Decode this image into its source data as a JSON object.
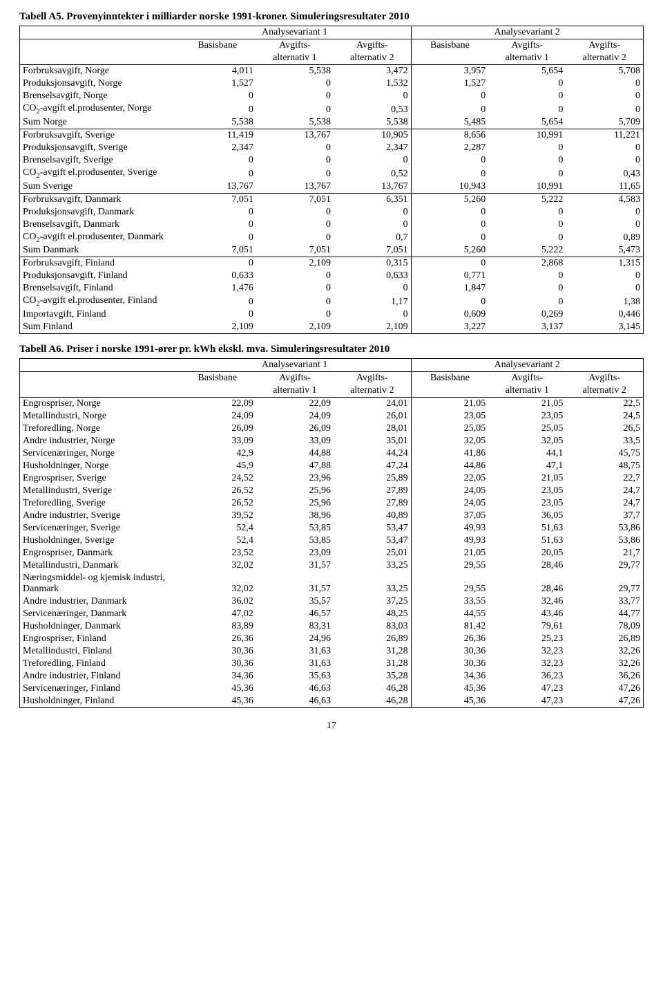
{
  "pageNumber": "17",
  "tableA5": {
    "title": "Tabell A5. Provenyinntekter i milliarder norske 1991-kroner. Simuleringsresultater 2010",
    "variantHeaders": {
      "v1": "Analysevariant 1",
      "v2": "Analysevariant 2"
    },
    "subHeaders": {
      "basisbane": "Basisbane",
      "avgiftsTop": "Avgifts-",
      "alt1": "alternativ 1",
      "alt2": "alternativ 2"
    },
    "groups": [
      {
        "rows": [
          {
            "label": "Forbruksavgift, Norge",
            "v1": [
              "4,011",
              "5,538",
              "3,472"
            ],
            "v2": [
              "3,957",
              "5,654",
              "5,708"
            ]
          },
          {
            "label": "Produksjonsavgift, Norge",
            "v1": [
              "1,527",
              "0",
              "1,532"
            ],
            "v2": [
              "1,527",
              "0",
              "0"
            ]
          },
          {
            "label": "Brenselsavgift, Norge",
            "v1": [
              "0",
              "0",
              "0"
            ],
            "v2": [
              "0",
              "0",
              "0"
            ]
          },
          {
            "label_html": "CO<sub>2</sub>-avgift el.produsenter, Norge",
            "v1": [
              "0",
              "0",
              "0,53"
            ],
            "v2": [
              "0",
              "0",
              "0"
            ]
          },
          {
            "label": "Sum Norge",
            "v1": [
              "5,538",
              "5,538",
              "5,538"
            ],
            "v2": [
              "5,485",
              "5,654",
              "5,709"
            ]
          }
        ]
      },
      {
        "rows": [
          {
            "label": "Forbruksavgift, Sverige",
            "v1": [
              "11,419",
              "13,767",
              "10,905"
            ],
            "v2": [
              "8,656",
              "10,991",
              "11,221"
            ]
          },
          {
            "label": "Produksjonsavgift, Sverige",
            "v1": [
              "2,347",
              "0",
              "2,347"
            ],
            "v2": [
              "2,287",
              "0",
              "0"
            ]
          },
          {
            "label": "Brenselsavgift, Sverige",
            "v1": [
              "0",
              "0",
              "0"
            ],
            "v2": [
              "0",
              "0",
              "0"
            ]
          },
          {
            "label_html": "CO<sub>2</sub>-avgift el.produsenter, Sverige",
            "v1": [
              "0",
              "0",
              "0,52"
            ],
            "v2": [
              "0",
              "0",
              "0,43"
            ]
          },
          {
            "label": "Sum Sverige",
            "v1": [
              "13,767",
              "13,767",
              "13,767"
            ],
            "v2": [
              "10,943",
              "10,991",
              "11,65"
            ]
          }
        ]
      },
      {
        "rows": [
          {
            "label": "Forbruksavgift, Danmark",
            "v1": [
              "7,051",
              "7,051",
              "6,351"
            ],
            "v2": [
              "5,260",
              "5,222",
              "4,583"
            ]
          },
          {
            "label": "Produksjonsavgift, Danmark",
            "v1": [
              "0",
              "0",
              "0"
            ],
            "v2": [
              "0",
              "0",
              "0"
            ]
          },
          {
            "label": "Brenselsavgift, Danmark",
            "v1": [
              "0",
              "0",
              "0"
            ],
            "v2": [
              "0",
              "0",
              "0"
            ]
          },
          {
            "label_html": "CO<sub>2</sub>-avgift el.produsenter, Danmark",
            "v1": [
              "0",
              "0",
              "0,7"
            ],
            "v2": [
              "0",
              "0",
              "0,89"
            ]
          },
          {
            "label": "Sum Danmark",
            "v1": [
              "7,051",
              "7,051",
              "7,051"
            ],
            "v2": [
              "5,260",
              "5,222",
              "5,473"
            ]
          }
        ]
      },
      {
        "rows": [
          {
            "label": "Forbruksavgift, Finland",
            "v1": [
              "0",
              "2,109",
              "0,315"
            ],
            "v2": [
              "0",
              "2,868",
              "1,315"
            ]
          },
          {
            "label": "Produksjonsavgift, Finland",
            "v1": [
              "0,633",
              "0",
              "0,633"
            ],
            "v2": [
              "0,771",
              "0",
              "0"
            ]
          },
          {
            "label": "Brenselsavgift, Finland",
            "v1": [
              "1,476",
              "0",
              "0"
            ],
            "v2": [
              "1,847",
              "0",
              "0"
            ]
          },
          {
            "label_html": "CO<sub>2</sub>-avgift el.produsenter, Finland",
            "v1": [
              "0",
              "0",
              "1,17"
            ],
            "v2": [
              "0",
              "0",
              "1,38"
            ]
          },
          {
            "label": "Importavgift, Finland",
            "v1": [
              "0",
              "0",
              "0"
            ],
            "v2": [
              "0,609",
              "0,269",
              "0,446"
            ]
          },
          {
            "label": "Sum Finland",
            "v1": [
              "2,109",
              "2,109",
              "2,109"
            ],
            "v2": [
              "3,227",
              "3,137",
              "3,145"
            ]
          }
        ]
      }
    ]
  },
  "tableA6": {
    "title": "Tabell A6. Priser i norske 1991-ører pr. kWh ekskl. mva. Simuleringsresultater 2010",
    "variantHeaders": {
      "v1": "Analysevariant 1",
      "v2": "Analysevariant 2"
    },
    "subHeaders": {
      "basisbane": "Basisbane",
      "avgiftsTop": "Avgifts-",
      "alt1": "alternativ 1",
      "alt2": "alternativ 2"
    },
    "rows": [
      {
        "label": "Engrospriser, Norge",
        "v1": [
          "22,09",
          "22,09",
          "24,01"
        ],
        "v2": [
          "21,05",
          "21,05",
          "22,5"
        ]
      },
      {
        "label": "Metallindustri, Norge",
        "v1": [
          "24,09",
          "24,09",
          "26,01"
        ],
        "v2": [
          "23,05",
          "23,05",
          "24,5"
        ]
      },
      {
        "label": "Treforedling, Norge",
        "v1": [
          "26,09",
          "26,09",
          "28,01"
        ],
        "v2": [
          "25,05",
          "25,05",
          "26,5"
        ]
      },
      {
        "label": "Andre industrier, Norge",
        "v1": [
          "33,09",
          "33,09",
          "35,01"
        ],
        "v2": [
          "32,05",
          "32,05",
          "33,5"
        ]
      },
      {
        "label": "Servicenæringer, Norge",
        "v1": [
          "42,9",
          "44,88",
          "44,24"
        ],
        "v2": [
          "41,86",
          "44,1",
          "45,75"
        ]
      },
      {
        "label": "Husholdninger, Norge",
        "v1": [
          "45,9",
          "47,88",
          "47,24"
        ],
        "v2": [
          "44,86",
          "47,1",
          "48,75"
        ]
      },
      {
        "label": "Engrospriser, Sverige",
        "v1": [
          "24,52",
          "23,96",
          "25,89"
        ],
        "v2": [
          "22,05",
          "21,05",
          "22,7"
        ]
      },
      {
        "label": "Metallindustri, Sverige",
        "v1": [
          "26,52",
          "25,96",
          "27,89"
        ],
        "v2": [
          "24,05",
          "23,05",
          "24,7"
        ]
      },
      {
        "label": "Treforedling, Sverige",
        "v1": [
          "26,52",
          "25,96",
          "27,89"
        ],
        "v2": [
          "24,05",
          "23,05",
          "24,7"
        ]
      },
      {
        "label": "Andre industrier, Sverige",
        "v1": [
          "39,52",
          "38,96",
          "40,89"
        ],
        "v2": [
          "37,05",
          "36,05",
          "37,7"
        ]
      },
      {
        "label": "Servicenæringer, Sverige",
        "v1": [
          "52,4",
          "53,85",
          "53,47"
        ],
        "v2": [
          "49,93",
          "51,63",
          "53,86"
        ]
      },
      {
        "label": "Husholdninger, Sverige",
        "v1": [
          "52,4",
          "53,85",
          "53,47"
        ],
        "v2": [
          "49,93",
          "51,63",
          "53,86"
        ]
      },
      {
        "label": "Engrospriser, Danmark",
        "v1": [
          "23,52",
          "23,09",
          "25,01"
        ],
        "v2": [
          "21,05",
          "20,05",
          "21,7"
        ]
      },
      {
        "label": "Metallindustri, Danmark",
        "v1": [
          "32,02",
          "31,57",
          "33,25"
        ],
        "v2": [
          "29,55",
          "28,46",
          "29,77"
        ]
      },
      {
        "label": "Næringsmiddel- og kjemisk industri, Danmark",
        "v1": [
          "32,02",
          "31,57",
          "33,25"
        ],
        "v2": [
          "29,55",
          "28,46",
          "29,77"
        ],
        "wrap": true
      },
      {
        "label": "Andre industrier, Danmark",
        "v1": [
          "36,02",
          "35,57",
          "37,25"
        ],
        "v2": [
          "33,55",
          "32,46",
          "33,77"
        ]
      },
      {
        "label": "Servicenæringer, Danmark",
        "v1": [
          "47,02",
          "46,57",
          "48,25"
        ],
        "v2": [
          "44,55",
          "43,46",
          "44,77"
        ]
      },
      {
        "label": "Husholdninger, Danmark",
        "v1": [
          "83,89",
          "83,31",
          "83,03"
        ],
        "v2": [
          "81,42",
          "79,61",
          "78,09"
        ]
      },
      {
        "label": "Engrospriser, Finland",
        "v1": [
          "26,36",
          "24,96",
          "26,89"
        ],
        "v2": [
          "26,36",
          "25,23",
          "26,89"
        ]
      },
      {
        "label": "Metallindustri, Finland",
        "v1": [
          "30,36",
          "31,63",
          "31,28"
        ],
        "v2": [
          "30,36",
          "32,23",
          "32,26"
        ]
      },
      {
        "label": "Treforedling, Finland",
        "v1": [
          "30,36",
          "31,63",
          "31,28"
        ],
        "v2": [
          "30,36",
          "32,23",
          "32,26"
        ]
      },
      {
        "label": "Andre industrier, Finland",
        "v1": [
          "34,36",
          "35,63",
          "35,28"
        ],
        "v2": [
          "34,36",
          "36,23",
          "36,26"
        ]
      },
      {
        "label": "Servicenæringer, Finland",
        "v1": [
          "45,36",
          "46,63",
          "46,28"
        ],
        "v2": [
          "45,36",
          "47,23",
          "47,26"
        ]
      },
      {
        "label": "Husholdninger, Finland",
        "v1": [
          "45,36",
          "46,63",
          "46,28"
        ],
        "v2": [
          "45,36",
          "47,23",
          "47,26"
        ]
      }
    ]
  }
}
